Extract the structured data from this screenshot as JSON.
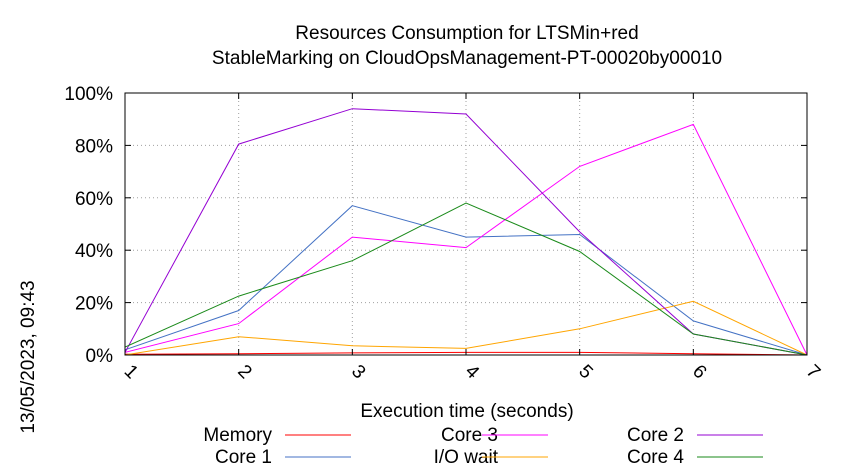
{
  "chart_data": {
    "type": "line",
    "title": "Resources Consumption for LTSMin+red",
    "subtitle": "StableMarking on CloudOpsManagement-PT-00020by00010",
    "xlabel": "Execution time (seconds)",
    "ylabel": "",
    "side_label": "13/05/2023, 09:43",
    "x": [
      1,
      2,
      3,
      4,
      5,
      6,
      7
    ],
    "xlim": [
      1,
      7
    ],
    "ylim": [
      0,
      100
    ],
    "x_ticks": [
      "1",
      "2",
      "3",
      "4",
      "5",
      "6",
      "7"
    ],
    "y_ticks": [
      {
        "value": 0,
        "label": "0%"
      },
      {
        "value": 20,
        "label": "20%"
      },
      {
        "value": 40,
        "label": "40%"
      },
      {
        "value": 60,
        "label": "60%"
      },
      {
        "value": 80,
        "label": "80%"
      },
      {
        "value": 100,
        "label": "100%"
      }
    ],
    "grid": true,
    "legend_position": "bottom",
    "series": [
      {
        "name": "Memory",
        "color": "#ff0000",
        "values": [
          0.3,
          0.5,
          0.8,
          1.0,
          1.0,
          0.5,
          0
        ]
      },
      {
        "name": "Core 1",
        "color": "#4472c4",
        "values": [
          2,
          17,
          57,
          45,
          46,
          13,
          0
        ]
      },
      {
        "name": "Core 3",
        "color": "#ff00ff",
        "values": [
          1,
          12,
          45,
          41,
          72,
          88,
          0
        ]
      },
      {
        "name": "I/O wait",
        "color": "#ffa500",
        "values": [
          0,
          7,
          3.5,
          2.5,
          10,
          20.5,
          0
        ]
      },
      {
        "name": "Core 2",
        "color": "#9400d3",
        "values": [
          1,
          80.5,
          94,
          92,
          47,
          8,
          0
        ]
      },
      {
        "name": "Core 4",
        "color": "#1a8a1a",
        "values": [
          3,
          22.5,
          36,
          58,
          39.5,
          8,
          0
        ]
      }
    ]
  }
}
